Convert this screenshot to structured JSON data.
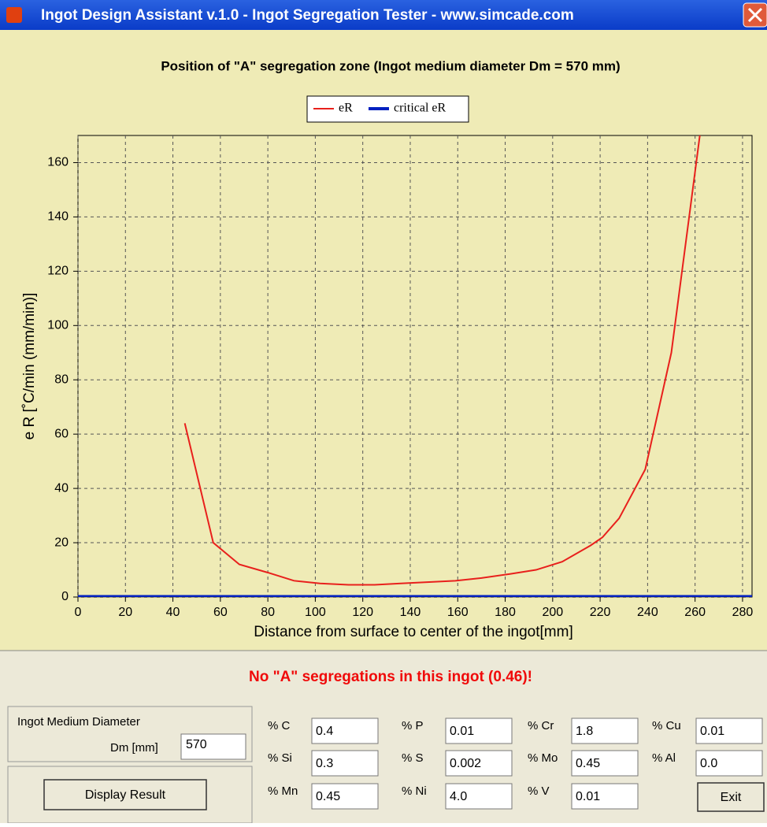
{
  "window": {
    "title": "Ingot Design Assistant v.1.0 - Ingot Segregation Tester -  www.simcade.com"
  },
  "chart_data": {
    "type": "line",
    "title": "Position of \"A\" segregation zone (Ingot medium diameter Dm = 570 mm)",
    "x_label": "Distance from surface to center of the ingot[mm]",
    "y_label": "e R [˚C/min (mm/min)]",
    "xlim": [
      0,
      284
    ],
    "ylim": [
      0,
      170
    ],
    "xticks": [
      0,
      20,
      40,
      60,
      80,
      100,
      120,
      140,
      160,
      180,
      200,
      220,
      240,
      260,
      280
    ],
    "yticks": [
      0,
      20,
      40,
      60,
      80,
      100,
      120,
      140,
      160
    ],
    "grid": true,
    "legend": "top",
    "series": [
      {
        "name": "eR",
        "color": "#e8201c",
        "x": [
          45,
          57,
          68,
          80,
          91,
          102,
          114,
          125,
          136,
          148,
          159,
          170,
          182,
          193,
          204,
          216,
          221,
          228,
          239,
          250,
          262
        ],
        "values": [
          64,
          20,
          12,
          9,
          6,
          5,
          4.5,
          4.5,
          5,
          5.5,
          6,
          7,
          8.5,
          10,
          13,
          19,
          22,
          29,
          47,
          90,
          170
        ]
      },
      {
        "name": "critical eR",
        "color": "#0020c0",
        "x": [
          0,
          284
        ],
        "values": [
          0,
          0
        ]
      }
    ]
  },
  "result": "No \"A\" segregations in this ingot (0.46)!",
  "diameter": {
    "label": "Ingot Medium Diameter",
    "unit_label": "Dm [mm]",
    "value": "570"
  },
  "button": "Display Result",
  "composition": [
    {
      "label": "% C",
      "value": "0.4"
    },
    {
      "label": "% P",
      "value": "0.01"
    },
    {
      "label": "% Cr",
      "value": "1.8"
    },
    {
      "label": "% Cu",
      "value": "0.01"
    },
    {
      "label": "% Si",
      "value": "0.3"
    },
    {
      "label": "% S",
      "value": "0.002"
    },
    {
      "label": "% Mo",
      "value": "0.45"
    },
    {
      "label": "% Al",
      "value": "0.0"
    },
    {
      "label": "% Mn",
      "value": "0.45"
    },
    {
      "label": "% Ni",
      "value": "4.0"
    },
    {
      "label": "% V",
      "value": "0.01"
    }
  ],
  "exit": "Exit"
}
